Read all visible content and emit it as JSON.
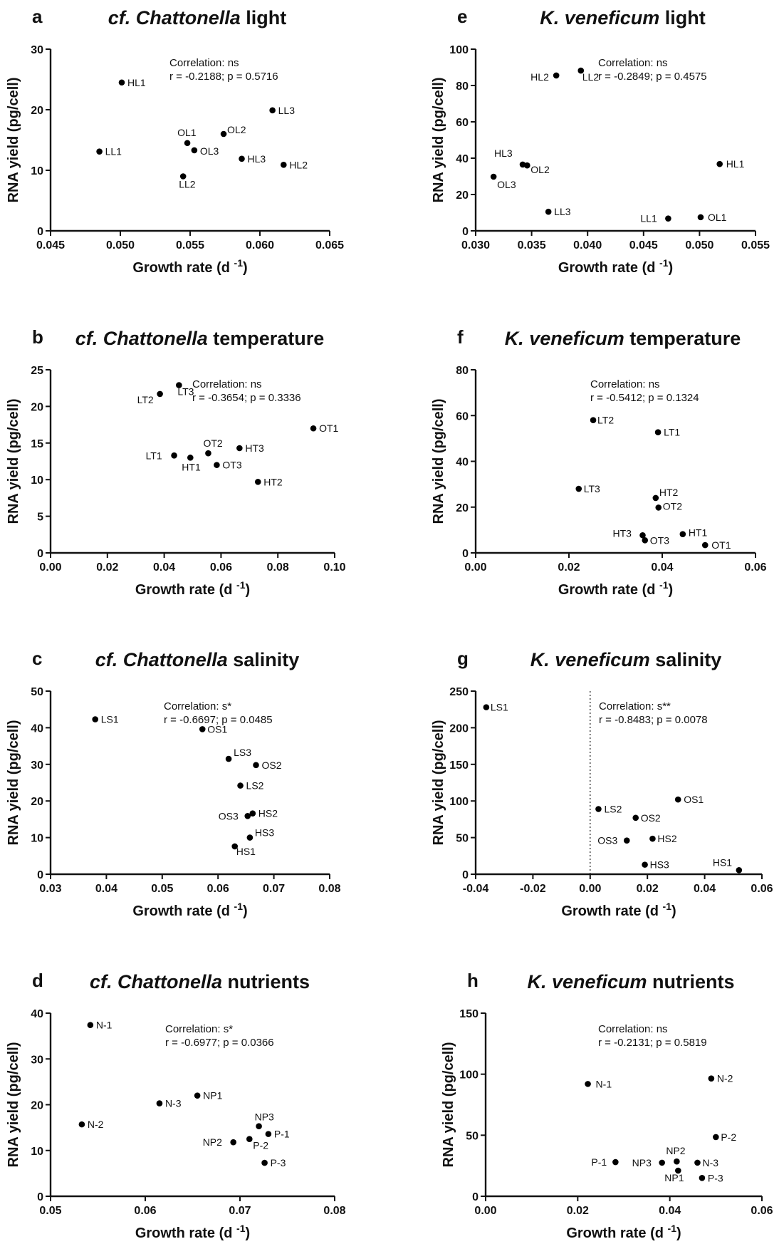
{
  "chart_data": [
    {
      "panel": "a",
      "type": "scatter",
      "title": {
        "italic": "cf. Chattonella",
        "rest": "light"
      },
      "xlabel": "Growth rate (d",
      "xlabel_sup": "-1",
      "xlabel_end": ")",
      "ylabel": "RNA yield (pg/cell)",
      "xlim": [
        0.045,
        0.065
      ],
      "ylim": [
        0,
        30
      ],
      "xticks": [
        "0.045",
        "0.050",
        "0.055",
        "0.060",
        "0.065"
      ],
      "yticks": [
        "0",
        "10",
        "20",
        "30"
      ],
      "stats": {
        "correlation": "Correlation: ns",
        "r": "r = -0.2188; p = 0.5716"
      },
      "points": [
        {
          "label": "HL1",
          "x": 0.0501,
          "y": 24.5
        },
        {
          "label": "LL1",
          "x": 0.0485,
          "y": 13.1
        },
        {
          "label": "OL1",
          "x": 0.0548,
          "y": 14.5
        },
        {
          "label": "OL3",
          "x": 0.0553,
          "y": 13.3
        },
        {
          "label": "LL2",
          "x": 0.0545,
          "y": 9.0
        },
        {
          "label": "OL2",
          "x": 0.0574,
          "y": 16.0
        },
        {
          "label": "HL3",
          "x": 0.0587,
          "y": 11.9
        },
        {
          "label": "LL3",
          "x": 0.0609,
          "y": 19.9
        },
        {
          "label": "HL2",
          "x": 0.0617,
          "y": 10.9
        }
      ]
    },
    {
      "panel": "e",
      "type": "scatter",
      "title": {
        "italic": "K. veneficum",
        "rest": "light"
      },
      "xlabel": "Growth rate (d",
      "xlabel_sup": "-1",
      "xlabel_end": ")",
      "ylabel": "RNA yield (pg/cell)",
      "xlim": [
        0.03,
        0.055
      ],
      "ylim": [
        0,
        100
      ],
      "xticks": [
        "0.030",
        "0.035",
        "0.040",
        "0.045",
        "0.050",
        "0.055"
      ],
      "yticks": [
        "0",
        "20",
        "40",
        "60",
        "80",
        "100"
      ],
      "stats": {
        "correlation": "Correlation: ns",
        "r": "r = -0.2849; p = 0.4575"
      },
      "points": [
        {
          "label": "HL2",
          "x": 0.0372,
          "y": 85.5
        },
        {
          "label": "LL2",
          "x": 0.0394,
          "y": 88.2
        },
        {
          "label": "HL3",
          "x": 0.0342,
          "y": 36.5
        },
        {
          "label": "OL2",
          "x": 0.0346,
          "y": 36.0
        },
        {
          "label": "OL3",
          "x": 0.0316,
          "y": 29.8
        },
        {
          "label": "LL3",
          "x": 0.0365,
          "y": 10.5
        },
        {
          "label": "HL1",
          "x": 0.0518,
          "y": 36.8
        },
        {
          "label": "LL1",
          "x": 0.0472,
          "y": 6.8
        },
        {
          "label": "OL1",
          "x": 0.0501,
          "y": 7.5
        }
      ]
    },
    {
      "panel": "b",
      "type": "scatter",
      "title": {
        "italic": "cf. Chattonella",
        "rest": "temperature"
      },
      "xlabel": "Growth rate (d",
      "xlabel_sup": "-1",
      "xlabel_end": ")",
      "ylabel": "RNA yield (pg/cell)",
      "xlim": [
        0.0,
        0.1
      ],
      "ylim": [
        0,
        25
      ],
      "xticks": [
        "0.00",
        "0.02",
        "0.04",
        "0.06",
        "0.08",
        "0.10"
      ],
      "yticks": [
        "0",
        "5",
        "10",
        "15",
        "20",
        "25"
      ],
      "stats": {
        "correlation": "Correlation: ns",
        "r": "r = -0.3654; p = 0.3336"
      },
      "points": [
        {
          "label": "LT3",
          "x": 0.0452,
          "y": 22.9
        },
        {
          "label": "LT2",
          "x": 0.0385,
          "y": 21.7
        },
        {
          "label": "OT1",
          "x": 0.0925,
          "y": 17.0
        },
        {
          "label": "OT2",
          "x": 0.0555,
          "y": 13.6
        },
        {
          "label": "HT3",
          "x": 0.0665,
          "y": 14.3
        },
        {
          "label": "LT1",
          "x": 0.0435,
          "y": 13.3
        },
        {
          "label": "HT1",
          "x": 0.0492,
          "y": 13.0
        },
        {
          "label": "OT3",
          "x": 0.0585,
          "y": 12.0
        },
        {
          "label": "HT2",
          "x": 0.073,
          "y": 9.7
        }
      ]
    },
    {
      "panel": "f",
      "type": "scatter",
      "title": {
        "italic": "K. veneficum",
        "rest": "temperature"
      },
      "xlabel": "Growth rate (d",
      "xlabel_sup": "-1",
      "xlabel_end": ")",
      "ylabel": "RNA yield (pg/cell)",
      "xlim": [
        0.0,
        0.06
      ],
      "ylim": [
        0,
        80
      ],
      "xticks": [
        "0.00",
        "0.02",
        "0.04",
        "0.06"
      ],
      "yticks": [
        "0",
        "20",
        "40",
        "60",
        "80"
      ],
      "stats": {
        "correlation": "Correlation: ns",
        "r": "r = -0.5412; p = 0.1324"
      },
      "points": [
        {
          "label": "LT2",
          "x": 0.0252,
          "y": 58.0
        },
        {
          "label": "LT1",
          "x": 0.0391,
          "y": 52.7
        },
        {
          "label": "LT3",
          "x": 0.0221,
          "y": 28.0
        },
        {
          "label": "HT2",
          "x": 0.0386,
          "y": 24.0
        },
        {
          "label": "OT2",
          "x": 0.0392,
          "y": 19.8
        },
        {
          "label": "HT3",
          "x": 0.0358,
          "y": 7.7
        },
        {
          "label": "OT3",
          "x": 0.0363,
          "y": 5.5
        },
        {
          "label": "HT1",
          "x": 0.0444,
          "y": 8.2
        },
        {
          "label": "OT1",
          "x": 0.0492,
          "y": 3.4
        }
      ]
    },
    {
      "panel": "c",
      "type": "scatter",
      "title": {
        "italic": "cf. Chattonella",
        "rest": "salinity"
      },
      "xlabel": "Growth rate (d",
      "xlabel_sup": "-1",
      "xlabel_end": ")",
      "ylabel": "RNA yield (pg/cell)",
      "xlim": [
        0.03,
        0.08
      ],
      "ylim": [
        0,
        50
      ],
      "xticks": [
        "0.03",
        "0.04",
        "0.05",
        "0.06",
        "0.07",
        "0.08"
      ],
      "yticks": [
        "0",
        "10",
        "20",
        "30",
        "40",
        "50"
      ],
      "stats": {
        "correlation": "Correlation: s*",
        "r": "r = -0.6697; p = 0.0485"
      },
      "points": [
        {
          "label": "LS1",
          "x": 0.038,
          "y": 42.3
        },
        {
          "label": "OS1",
          "x": 0.0572,
          "y": 39.6
        },
        {
          "label": "LS3",
          "x": 0.0619,
          "y": 31.5
        },
        {
          "label": "OS2",
          "x": 0.0668,
          "y": 29.8
        },
        {
          "label": "LS2",
          "x": 0.064,
          "y": 24.2
        },
        {
          "label": "OS3",
          "x": 0.0653,
          "y": 15.9
        },
        {
          "label": "HS2",
          "x": 0.0662,
          "y": 16.6
        },
        {
          "label": "HS3",
          "x": 0.0657,
          "y": 10.0
        },
        {
          "label": "HS1",
          "x": 0.063,
          "y": 7.6
        }
      ]
    },
    {
      "panel": "g",
      "type": "scatter",
      "title": {
        "italic": "K. veneficum",
        "rest": "salinity"
      },
      "xlabel": "Growth rate (d",
      "xlabel_sup": "-1",
      "xlabel_end": ")",
      "ylabel": "RNA yield (pg/cell)",
      "xlim": [
        -0.04,
        0.06
      ],
      "ylim": [
        0,
        250
      ],
      "xticks": [
        "-0.04",
        "-0.02",
        "0.00",
        "0.02",
        "0.04",
        "0.06"
      ],
      "yticks": [
        "0",
        "50",
        "100",
        "150",
        "200",
        "250"
      ],
      "zero_line": true,
      "stats": {
        "correlation": "Correlation: s**",
        "r": "r = -0.8483; p = 0.0078"
      },
      "points": [
        {
          "label": "LS1",
          "x": -0.0363,
          "y": 228.0
        },
        {
          "label": "OS1",
          "x": 0.0307,
          "y": 102.0
        },
        {
          "label": "LS2",
          "x": 0.0029,
          "y": 89.0
        },
        {
          "label": "OS2",
          "x": 0.0159,
          "y": 77.0
        },
        {
          "label": "OS3",
          "x": 0.0128,
          "y": 46.0
        },
        {
          "label": "HS2",
          "x": 0.0218,
          "y": 48.5
        },
        {
          "label": "HS3",
          "x": 0.0191,
          "y": 13.0
        },
        {
          "label": "HS1",
          "x": 0.052,
          "y": 5.5
        }
      ]
    },
    {
      "panel": "d",
      "type": "scatter",
      "title": {
        "italic": "cf. Chattonella",
        "rest": "nutrients"
      },
      "xlabel": "Growth rate (d",
      "xlabel_sup": "-1",
      "xlabel_end": ")",
      "ylabel": "RNA yield (pg/cell)",
      "xlim": [
        0.05,
        0.08
      ],
      "ylim": [
        0,
        40
      ],
      "xticks": [
        "0.05",
        "0.06",
        "0.07",
        "0.08"
      ],
      "yticks": [
        "0",
        "10",
        "20",
        "30",
        "40"
      ],
      "stats": {
        "correlation": "Correlation: s*",
        "r": "r = -0.6977; p = 0.0366"
      },
      "points": [
        {
          "label": "N-1",
          "x": 0.0542,
          "y": 37.4
        },
        {
          "label": "N-2",
          "x": 0.0533,
          "y": 15.7
        },
        {
          "label": "N-3",
          "x": 0.0615,
          "y": 20.3
        },
        {
          "label": "NP1",
          "x": 0.0655,
          "y": 22.0
        },
        {
          "label": "NP3",
          "x": 0.072,
          "y": 15.3
        },
        {
          "label": "P-1",
          "x": 0.073,
          "y": 13.6
        },
        {
          "label": "NP2",
          "x": 0.0693,
          "y": 11.8
        },
        {
          "label": "P-2",
          "x": 0.071,
          "y": 12.5
        },
        {
          "label": "P-3",
          "x": 0.0726,
          "y": 7.3
        }
      ]
    },
    {
      "panel": "h",
      "type": "scatter",
      "title": {
        "italic": "K. veneficum",
        "rest": "nutrients"
      },
      "xlabel": "Growth rate (d",
      "xlabel_sup": "-1",
      "xlabel_end": ")",
      "ylabel": "RNA yield (pg/cell)",
      "xlim": [
        0.0,
        0.06
      ],
      "ylim": [
        0,
        150
      ],
      "xticks": [
        "0.00",
        "0.02",
        "0.04",
        "0.06"
      ],
      "yticks": [
        "0",
        "50",
        "100",
        "150"
      ],
      "stats": {
        "correlation": "Correlation: ns",
        "r": "r = -0.2131; p = 0.5819"
      },
      "points": [
        {
          "label": "N-1",
          "x": 0.0222,
          "y": 92.0
        },
        {
          "label": "N-2",
          "x": 0.049,
          "y": 96.5
        },
        {
          "label": "P-2",
          "x": 0.05,
          "y": 48.5
        },
        {
          "label": "NP2",
          "x": 0.0415,
          "y": 28.5
        },
        {
          "label": "P-1",
          "x": 0.0282,
          "y": 28.0
        },
        {
          "label": "NP3",
          "x": 0.0383,
          "y": 27.5
        },
        {
          "label": "N-3",
          "x": 0.046,
          "y": 27.5
        },
        {
          "label": "NP1",
          "x": 0.0418,
          "y": 21.0
        },
        {
          "label": "P-3",
          "x": 0.047,
          "y": 15.0
        }
      ]
    }
  ]
}
